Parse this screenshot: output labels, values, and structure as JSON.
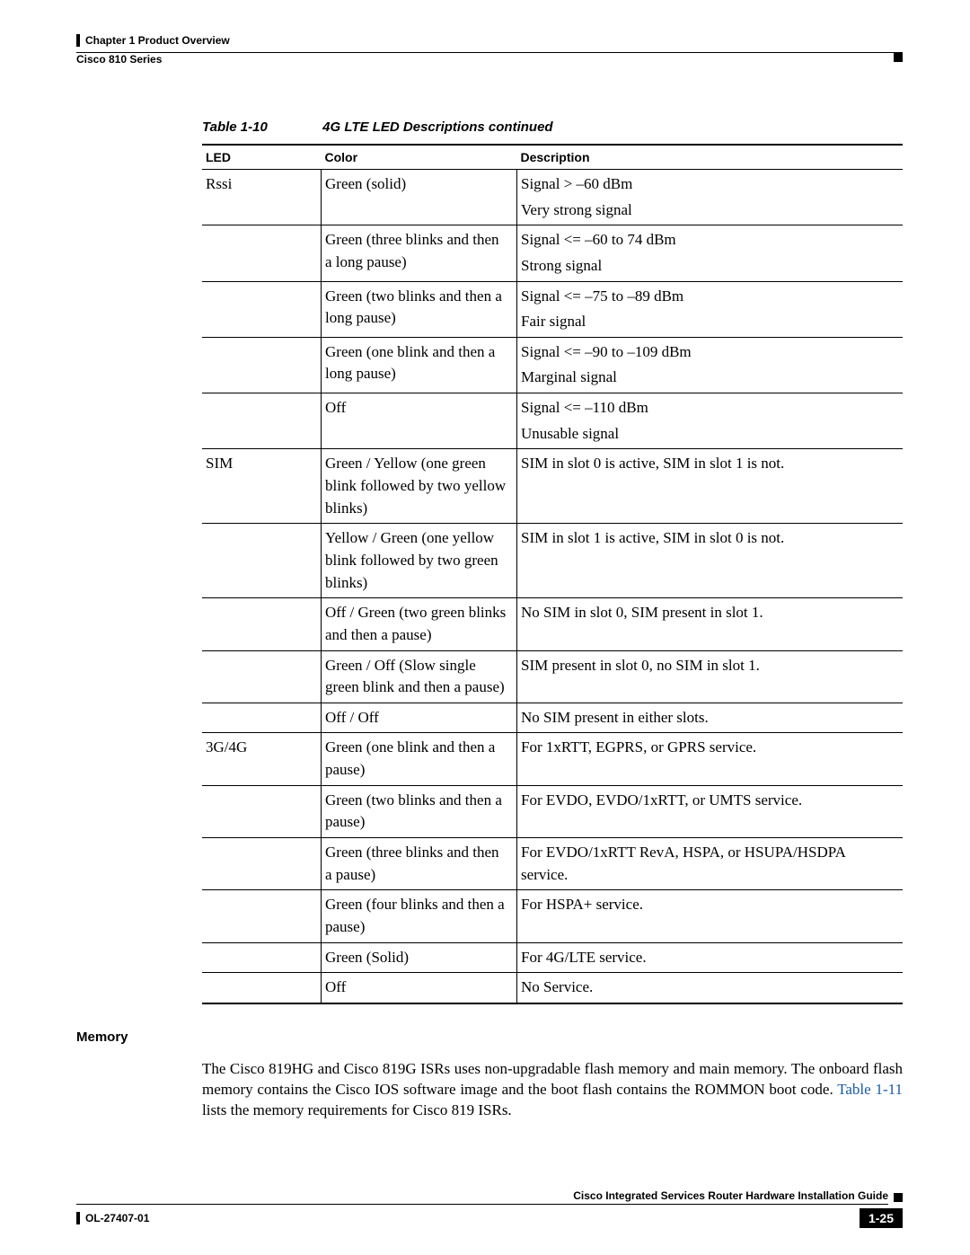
{
  "header": {
    "chapter": "Chapter 1      Product Overview",
    "series": "Cisco 810 Series"
  },
  "table": {
    "caption_num": "Table 1-10",
    "caption_title": "4G LTE LED Descriptions  continued",
    "columns": {
      "led": "LED",
      "color": "Color",
      "desc": "Description"
    },
    "rows": [
      {
        "sep": true,
        "led": "Rssi",
        "color": "Green (solid)",
        "desc1": "Signal > –60 dBm",
        "desc2": "Very strong signal"
      },
      {
        "sep": true,
        "led": "",
        "color": "Green (three blinks and then a long pause)",
        "desc1": "Signal <= –60 to 74 dBm",
        "desc2": "Strong signal"
      },
      {
        "sep": true,
        "led": "",
        "color": "Green (two blinks and then a long pause)",
        "desc1": "Signal <= –75 to –89 dBm",
        "desc2": "Fair signal"
      },
      {
        "sep": true,
        "led": "",
        "color": "Green (one blink and then a long pause)",
        "desc1": "Signal <= –90 to –109 dBm",
        "desc2": "Marginal signal"
      },
      {
        "sep": true,
        "led": "",
        "color": "Off",
        "desc1": "Signal <= –110 dBm",
        "desc2": "Unusable signal"
      },
      {
        "sep": true,
        "led": "SIM",
        "color": "Green / Yellow (one green blink followed by two yellow blinks)",
        "desc1": "SIM in slot 0 is active, SIM in slot 1 is not.",
        "desc2": ""
      },
      {
        "sep": true,
        "led": "",
        "color": "Yellow / Green (one yellow blink followed by two green blinks)",
        "desc1": "SIM in slot 1 is active, SIM in slot 0 is not.",
        "desc2": ""
      },
      {
        "sep": true,
        "led": "",
        "color": "Off / Green (two green blinks and then a pause)",
        "desc1": "No SIM in slot 0, SIM present in slot 1.",
        "desc2": ""
      },
      {
        "sep": true,
        "led": "",
        "color": "Green / Off (Slow single green blink and then a pause)",
        "desc1": "SIM present in slot 0, no SIM in slot 1.",
        "desc2": ""
      },
      {
        "sep": true,
        "led": "",
        "color": "Off / Off",
        "desc1": "No SIM present in either slots.",
        "desc2": ""
      },
      {
        "sep": true,
        "led": "3G/4G",
        "color": "Green (one blink and then a pause)",
        "desc1": "For 1xRTT, EGPRS, or GPRS service.",
        "desc2": ""
      },
      {
        "sep": true,
        "led": "",
        "color": "Green (two blinks and then a pause)",
        "desc1": "For EVDO, EVDO/1xRTT, or UMTS service.",
        "desc2": ""
      },
      {
        "sep": true,
        "led": "",
        "color": "Green (three blinks and then a pause)",
        "desc1": "For EVDO/1xRTT RevA, HSPA, or HSUPA/HSDPA service.",
        "desc2": ""
      },
      {
        "sep": true,
        "led": "",
        "color": "Green (four blinks and then a pause)",
        "desc1": "For HSPA+ service.",
        "desc2": ""
      },
      {
        "sep": true,
        "led": "",
        "color": "Green (Solid)",
        "desc1": "For 4G/LTE service.",
        "desc2": ""
      },
      {
        "sep": true,
        "last": true,
        "led": "",
        "color": "Off",
        "desc1": "No Service.",
        "desc2": ""
      }
    ]
  },
  "section": {
    "heading": "Memory"
  },
  "paragraph": {
    "t1": "The Cisco 819HG and Cisco 819G ISRs uses non-upgradable flash memory and main memory. The onboard flash memory contains the Cisco IOS software image and the boot flash contains the ROMMON boot code. ",
    "link": "Table 1-11",
    "t2": " lists the memory requirements for Cisco 819 ISRs."
  },
  "footer": {
    "guide": "Cisco Integrated Services Router Hardware Installation Guide",
    "doc": "OL-27407-01",
    "page": "1-25"
  }
}
